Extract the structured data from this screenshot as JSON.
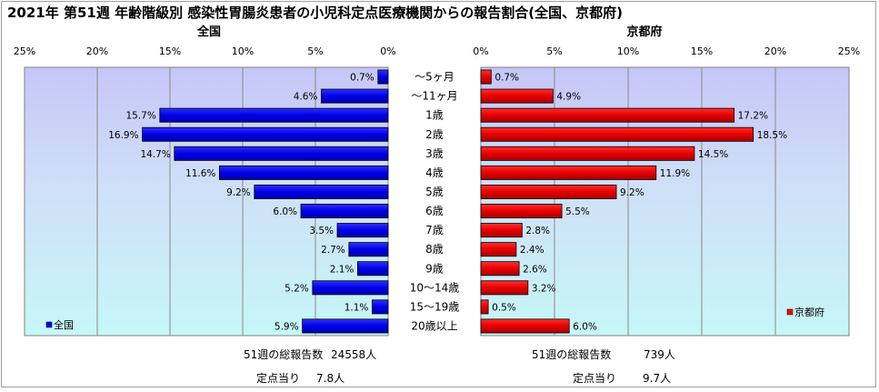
{
  "title": "2021年 第51週 年齢階級別 感染性胃腸炎患者の小児科定点医療機関からの報告割合(全国、京都府)",
  "chart_data": [
    {
      "type": "bar",
      "orientation": "horizontal",
      "direction": "reversed",
      "title": "全国",
      "categories": [
        "～5ヶ月",
        "～11ヶ月",
        "1歳",
        "2歳",
        "3歳",
        "4歳",
        "5歳",
        "6歳",
        "7歳",
        "8歳",
        "9歳",
        "10～14歳",
        "15～19歳",
        "20歳以上"
      ],
      "series": [
        {
          "name": "全国",
          "values": [
            0.7,
            4.6,
            15.7,
            16.9,
            14.7,
            11.6,
            9.2,
            6.0,
            3.5,
            2.7,
            2.1,
            5.2,
            1.1,
            5.9
          ],
          "color": "#0000ff"
        }
      ],
      "value_labels": [
        "0.7%",
        "4.6%",
        "15.7%",
        "16.9%",
        "14.7%",
        "11.6%",
        "9.2%",
        "6.0%",
        "3.5%",
        "2.7%",
        "2.1%",
        "5.2%",
        "1.1%",
        "5.9%"
      ],
      "xlim": [
        0,
        25
      ],
      "ticks": [
        0,
        5,
        10,
        15,
        20,
        25
      ],
      "tick_labels": [
        "0%",
        "5%",
        "10%",
        "15%",
        "20%",
        "25%"
      ],
      "grid": true,
      "legend": "bottom-left"
    },
    {
      "type": "bar",
      "orientation": "horizontal",
      "title": "京都府",
      "categories": [
        "～5ヶ月",
        "～11ヶ月",
        "1歳",
        "2歳",
        "3歳",
        "4歳",
        "5歳",
        "6歳",
        "7歳",
        "8歳",
        "9歳",
        "10～14歳",
        "15～19歳",
        "20歳以上"
      ],
      "series": [
        {
          "name": "京都府",
          "values": [
            0.7,
            4.9,
            17.2,
            18.5,
            14.5,
            11.9,
            9.2,
            5.5,
            2.8,
            2.4,
            2.6,
            3.2,
            0.5,
            6.0
          ],
          "color": "#ff0000"
        }
      ],
      "value_labels": [
        "0.7%",
        "4.9%",
        "17.2%",
        "18.5%",
        "14.5%",
        "11.9%",
        "9.2%",
        "5.5%",
        "2.8%",
        "2.4%",
        "2.6%",
        "3.2%",
        "0.5%",
        "6.0%"
      ],
      "xlim": [
        0,
        25
      ],
      "ticks": [
        0,
        5,
        10,
        15,
        20,
        25
      ],
      "tick_labels": [
        "0%",
        "5%",
        "10%",
        "15%",
        "20%",
        "25%"
      ],
      "grid": true,
      "legend": "bottom-right"
    }
  ],
  "summary": {
    "national": {
      "total_label": "51週の総報告数",
      "total_value": "24558人",
      "per_label": "定点当り",
      "per_value": "7.8人"
    },
    "kyoto": {
      "total_label": "51週の総報告数",
      "total_value": "739人",
      "per_label": "定点当り",
      "per_value": "9.7人"
    }
  }
}
